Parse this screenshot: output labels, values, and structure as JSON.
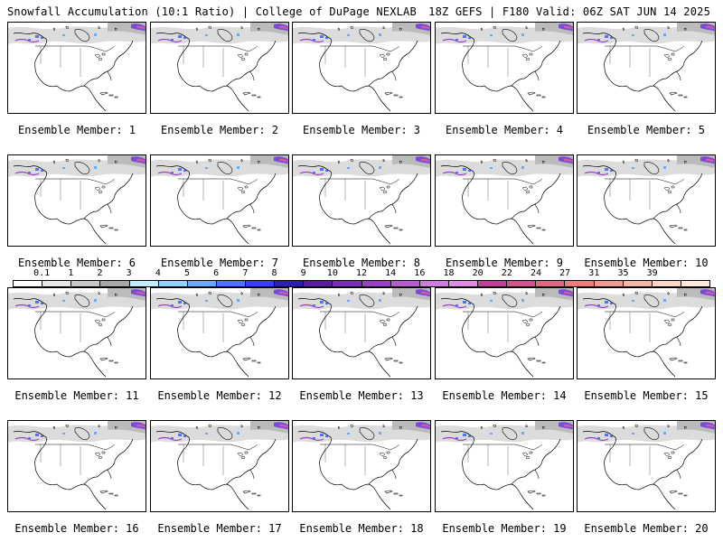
{
  "header": {
    "left": "Snowfall Accumulation (10:1 Ratio) | College of DuPage NEXLAB",
    "right": "18Z GEFS | F180 Valid: 06Z SAT JUN 14 2025"
  },
  "colorbar": {
    "labels": [
      "0.1",
      "1",
      "2",
      "3",
      "4",
      "5",
      "6",
      "7",
      "8",
      "9",
      "10",
      "12",
      "14",
      "16",
      "18",
      "20",
      "22",
      "24",
      "27",
      "31",
      "35",
      "39"
    ],
    "colors": [
      "#ffffff",
      "#e6e6e6",
      "#c8c8c8",
      "#a6a6a6",
      "#bfefff",
      "#8fd3ff",
      "#6aa7ff",
      "#4e73ff",
      "#3a3fe6",
      "#2d1fb0",
      "#5b1aa0",
      "#7a2cb3",
      "#9a3fc6",
      "#b85bd2",
      "#d07be0",
      "#e089e6",
      "#c2409a",
      "#d2518e",
      "#e16783",
      "#ec7d7a",
      "#f29a8f",
      "#f6b7a6",
      "#fad7c6",
      "#fde9dd"
    ]
  },
  "members": [
    {
      "label": "Ensemble Member: 1"
    },
    {
      "label": "Ensemble Member: 2"
    },
    {
      "label": "Ensemble Member: 3"
    },
    {
      "label": "Ensemble Member: 4"
    },
    {
      "label": "Ensemble Member: 5"
    },
    {
      "label": "Ensemble Member: 6"
    },
    {
      "label": "Ensemble Member: 7"
    },
    {
      "label": "Ensemble Member: 8"
    },
    {
      "label": "Ensemble Member: 9"
    },
    {
      "label": "Ensemble Member: 10"
    },
    {
      "label": "Ensemble Member: 11"
    },
    {
      "label": "Ensemble Member: 12"
    },
    {
      "label": "Ensemble Member: 13"
    },
    {
      "label": "Ensemble Member: 14"
    },
    {
      "label": "Ensemble Member: 15"
    },
    {
      "label": "Ensemble Member: 16"
    },
    {
      "label": "Ensemble Member: 17"
    },
    {
      "label": "Ensemble Member: 18"
    },
    {
      "label": "Ensemble Member: 19"
    },
    {
      "label": "Ensemble Member: 20"
    }
  ]
}
